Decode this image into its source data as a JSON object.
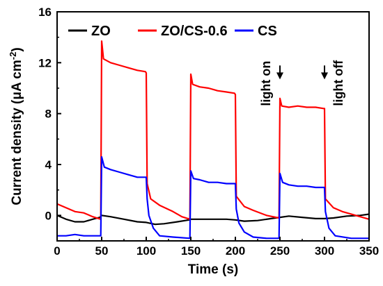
{
  "chart_data": {
    "type": "line",
    "xlabel": "Time (s)",
    "ylabel": {
      "main": "Current density (",
      "mu": "μ",
      "unit": "A cm",
      "exp": "-2",
      "close": ")"
    },
    "xlim": [
      0,
      350
    ],
    "ylim": [
      -2,
      16
    ],
    "xticks": [
      0,
      50,
      100,
      150,
      200,
      250,
      300,
      350
    ],
    "yticks": [
      0,
      4,
      8,
      12,
      16
    ],
    "grid": false,
    "legend_position": "top",
    "annotations": [
      {
        "text": "light on",
        "x": 250,
        "y_text": 8.6,
        "arrow_y": 10.8
      },
      {
        "text": "light off",
        "x": 300,
        "y_text": 8.6,
        "arrow_y": 10.8
      }
    ],
    "series": [
      {
        "name": "ZO",
        "color": "#000000",
        "points": [
          [
            0,
            0.0
          ],
          [
            10,
            -0.3
          ],
          [
            20,
            -0.5
          ],
          [
            30,
            -0.5
          ],
          [
            40,
            -0.3
          ],
          [
            48,
            -0.15
          ],
          [
            50,
            0.0
          ],
          [
            60,
            -0.1
          ],
          [
            75,
            -0.3
          ],
          [
            90,
            -0.5
          ],
          [
            100,
            -0.55
          ],
          [
            110,
            -0.7
          ],
          [
            120,
            -0.65
          ],
          [
            135,
            -0.5
          ],
          [
            148,
            -0.35
          ],
          [
            150,
            -0.3
          ],
          [
            160,
            -0.3
          ],
          [
            175,
            -0.3
          ],
          [
            190,
            -0.3
          ],
          [
            200,
            -0.35
          ],
          [
            210,
            -0.45
          ],
          [
            225,
            -0.4
          ],
          [
            240,
            -0.25
          ],
          [
            250,
            -0.15
          ],
          [
            260,
            -0.05
          ],
          [
            275,
            -0.15
          ],
          [
            290,
            -0.25
          ],
          [
            300,
            -0.25
          ],
          [
            310,
            -0.2
          ],
          [
            325,
            -0.05
          ],
          [
            340,
            0.0
          ],
          [
            350,
            0.1
          ]
        ]
      },
      {
        "name": "ZO/CS-0.6",
        "color": "#ff0000",
        "points": [
          [
            0,
            0.9
          ],
          [
            10,
            0.6
          ],
          [
            20,
            0.3
          ],
          [
            30,
            0.2
          ],
          [
            40,
            -0.1
          ],
          [
            49,
            -0.3
          ],
          [
            50,
            13.7
          ],
          [
            52,
            12.3
          ],
          [
            60,
            12.0
          ],
          [
            70,
            11.8
          ],
          [
            80,
            11.6
          ],
          [
            90,
            11.4
          ],
          [
            99,
            11.3
          ],
          [
            100,
            11.2
          ],
          [
            101,
            2.5
          ],
          [
            105,
            1.3
          ],
          [
            115,
            0.8
          ],
          [
            130,
            0.3
          ],
          [
            140,
            -0.1
          ],
          [
            149,
            -0.3
          ],
          [
            150,
            11.1
          ],
          [
            152,
            10.3
          ],
          [
            160,
            10.1
          ],
          [
            170,
            10.0
          ],
          [
            180,
            9.8
          ],
          [
            190,
            9.7
          ],
          [
            199,
            9.6
          ],
          [
            200,
            9.5
          ],
          [
            201,
            1.5
          ],
          [
            210,
            0.7
          ],
          [
            220,
            0.4
          ],
          [
            235,
            0.0
          ],
          [
            249,
            -0.2
          ],
          [
            250,
            9.2
          ],
          [
            252,
            8.6
          ],
          [
            260,
            8.5
          ],
          [
            270,
            8.6
          ],
          [
            280,
            8.5
          ],
          [
            290,
            8.5
          ],
          [
            299,
            8.4
          ],
          [
            300,
            8.4
          ],
          [
            301,
            1.3
          ],
          [
            310,
            0.6
          ],
          [
            320,
            0.3
          ],
          [
            335,
            0.0
          ],
          [
            350,
            -0.3
          ]
        ]
      },
      {
        "name": "CS",
        "color": "#0000ff",
        "points": [
          [
            0,
            -1.6
          ],
          [
            10,
            -1.6
          ],
          [
            20,
            -1.5
          ],
          [
            30,
            -1.6
          ],
          [
            40,
            -1.6
          ],
          [
            49,
            -1.6
          ],
          [
            50,
            4.6
          ],
          [
            53,
            3.8
          ],
          [
            60,
            3.6
          ],
          [
            70,
            3.4
          ],
          [
            80,
            3.2
          ],
          [
            90,
            3.0
          ],
          [
            99,
            3.0
          ],
          [
            100,
            3.0
          ],
          [
            101,
            1.3
          ],
          [
            103,
            0.0
          ],
          [
            108,
            -1.0
          ],
          [
            115,
            -1.6
          ],
          [
            130,
            -1.7
          ],
          [
            149,
            -1.8
          ],
          [
            150,
            3.5
          ],
          [
            153,
            2.9
          ],
          [
            160,
            2.8
          ],
          [
            170,
            2.6
          ],
          [
            180,
            2.6
          ],
          [
            190,
            2.5
          ],
          [
            199,
            2.5
          ],
          [
            200,
            2.5
          ],
          [
            201,
            0.5
          ],
          [
            204,
            -0.6
          ],
          [
            210,
            -1.3
          ],
          [
            220,
            -1.7
          ],
          [
            235,
            -1.8
          ],
          [
            249,
            -1.8
          ],
          [
            250,
            3.3
          ],
          [
            253,
            2.6
          ],
          [
            260,
            2.4
          ],
          [
            270,
            2.3
          ],
          [
            280,
            2.3
          ],
          [
            290,
            2.2
          ],
          [
            299,
            2.2
          ],
          [
            300,
            2.2
          ],
          [
            301,
            0.3
          ],
          [
            305,
            -1.0
          ],
          [
            312,
            -1.6
          ],
          [
            330,
            -1.8
          ],
          [
            350,
            -1.8
          ]
        ]
      }
    ]
  }
}
